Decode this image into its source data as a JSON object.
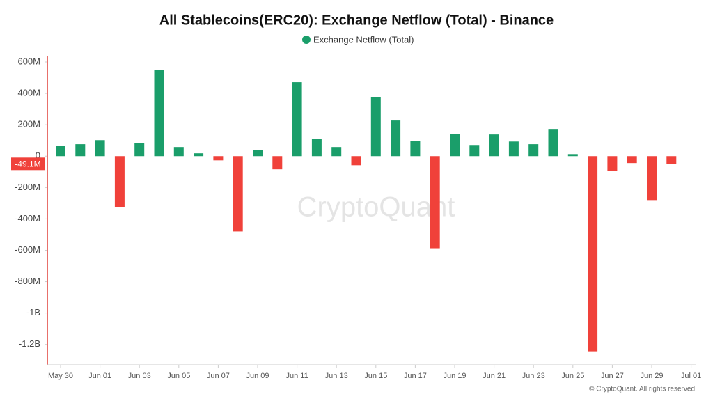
{
  "chart_data": {
    "type": "bar",
    "title": "All Stablecoins(ERC20): Exchange Netflow (Total) - Binance",
    "categories": [
      "May 30",
      null,
      "Jun 01",
      null,
      "Jun 03",
      null,
      "Jun 05",
      null,
      "Jun 07",
      null,
      "Jun 09",
      null,
      "Jun 11",
      null,
      "Jun 13",
      null,
      "Jun 15",
      null,
      "Jun 17",
      null,
      "Jun 19",
      null,
      "Jun 21",
      null,
      "Jun 23",
      null,
      "Jun 25",
      null,
      "Jun 27",
      null,
      "Jun 29",
      null,
      "Jul 01"
    ],
    "series": [
      {
        "name": "Exchange Netflow (Total)",
        "color": "#1a9e6a",
        "negative_color": "#f0413a",
        "values": [
          67,
          76,
          102,
          -324,
          84,
          547,
          58,
          18,
          -27,
          -480,
          40,
          -84,
          471,
          111,
          58,
          -58,
          378,
          227,
          98,
          -587,
          142,
          71,
          138,
          93,
          76,
          169,
          13,
          -1244,
          -93,
          -44,
          -280,
          -49.1,
          null
        ]
      }
    ],
    "ylim": [
      -1330,
      640
    ],
    "yticks": [
      {
        "value": 600,
        "label": "600M"
      },
      {
        "value": 400,
        "label": "400M"
      },
      {
        "value": 200,
        "label": "200M"
      },
      0,
      {
        "value": -200,
        "label": "-200M"
      },
      {
        "value": -400,
        "label": "-400M"
      },
      {
        "value": -600,
        "label": "-600M"
      },
      {
        "value": -800,
        "label": "-800M"
      },
      {
        "value": -1000,
        "label": "-1B"
      },
      {
        "value": -1200,
        "label": "-1.2B"
      }
    ],
    "current_value": {
      "value": -49.1,
      "label": "-49.1M"
    },
    "watermark": "CryptoQuant",
    "footer": "© CryptoQuant. All rights reserved"
  }
}
